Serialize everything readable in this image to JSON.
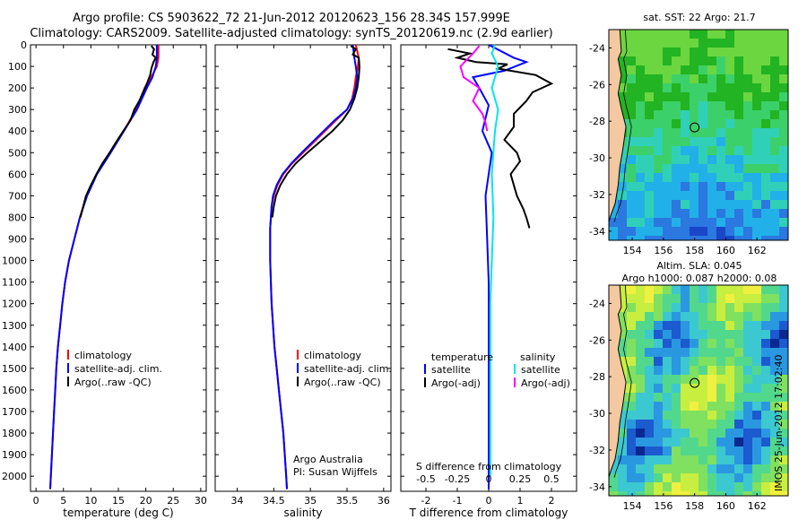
{
  "header": {
    "title_line1": "Argo profile: CS 5903622_72 21-Jun-2012 20120623_156 28.34S 157.999E",
    "title_line2": "Climatology: CARS2009. Satellite-adjusted climatology: synTS_20120619.nc (2.9d earlier)"
  },
  "depth_axis": {
    "ylim": [
      0,
      2070
    ],
    "ticks": [
      0,
      100,
      200,
      300,
      400,
      500,
      600,
      700,
      800,
      900,
      1000,
      1100,
      1200,
      1300,
      1400,
      1500,
      1600,
      1700,
      1800,
      1900,
      2000
    ]
  },
  "colors": {
    "climatology": "#ff0000",
    "satellite": "#0000ff",
    "argo": "#000000",
    "cyan": "#00e5ee",
    "magenta": "#ff00ff"
  },
  "chart_data": [
    {
      "type": "line",
      "name": "temperature",
      "xlabel": "temperature (deg C)",
      "xlim": [
        -1,
        31
      ],
      "xticks": [
        0,
        5,
        10,
        15,
        20,
        25,
        30
      ],
      "legend": [
        "climatology",
        "satellite-adj. clim.",
        "Argo(..raw -QC)"
      ],
      "series": [
        {
          "name": "climatology",
          "color": "#ff0000",
          "points": [
            [
              22.3,
              0
            ],
            [
              22.3,
              60
            ],
            [
              22.0,
              100
            ],
            [
              21.0,
              150
            ],
            [
              19.8,
              200
            ],
            [
              18.2,
              300
            ],
            [
              16.0,
              400
            ],
            [
              13.5,
              500
            ],
            [
              11.0,
              600
            ],
            [
              9.2,
              700
            ],
            [
              8.0,
              800
            ],
            [
              7.0,
              900
            ],
            [
              6.0,
              1000
            ],
            [
              5.3,
              1100
            ],
            [
              4.8,
              1200
            ],
            [
              4.4,
              1300
            ],
            [
              4.0,
              1400
            ],
            [
              3.7,
              1500
            ],
            [
              3.5,
              1600
            ],
            [
              3.3,
              1700
            ],
            [
              3.1,
              1800
            ],
            [
              2.9,
              1900
            ],
            [
              2.7,
              2000
            ],
            [
              2.6,
              2060
            ]
          ]
        },
        {
          "name": "satellite-adj. clim.",
          "color": "#0000ff",
          "points": [
            [
              22.0,
              0
            ],
            [
              22.0,
              60
            ],
            [
              21.8,
              100
            ],
            [
              21.2,
              150
            ],
            [
              20.2,
              200
            ],
            [
              18.4,
              300
            ],
            [
              16.0,
              400
            ],
            [
              13.6,
              500
            ],
            [
              11.1,
              600
            ],
            [
              9.3,
              700
            ],
            [
              8.0,
              800
            ],
            [
              7.0,
              900
            ],
            [
              6.0,
              1000
            ],
            [
              5.3,
              1100
            ],
            [
              4.8,
              1200
            ],
            [
              4.4,
              1300
            ],
            [
              4.0,
              1400
            ],
            [
              3.7,
              1500
            ],
            [
              3.5,
              1600
            ],
            [
              3.3,
              1700
            ],
            [
              3.1,
              1800
            ],
            [
              2.9,
              1900
            ],
            [
              2.7,
              2000
            ],
            [
              2.6,
              2060
            ]
          ]
        },
        {
          "name": "Argo(..raw -QC)",
          "color": "#000000",
          "points": [
            [
              21.0,
              5
            ],
            [
              21.5,
              20
            ],
            [
              21.2,
              45
            ],
            [
              21.8,
              60
            ],
            [
              21.4,
              80
            ],
            [
              21.0,
              110
            ],
            [
              20.8,
              140
            ],
            [
              20.2,
              180
            ],
            [
              19.5,
              220
            ],
            [
              18.8,
              260
            ],
            [
              17.9,
              300
            ],
            [
              17.2,
              350
            ],
            [
              15.9,
              400
            ],
            [
              14.6,
              450
            ],
            [
              13.4,
              500
            ],
            [
              12.1,
              550
            ],
            [
              11.0,
              600
            ],
            [
              10.0,
              650
            ],
            [
              9.1,
              700
            ],
            [
              8.6,
              750
            ],
            [
              8.1,
              800
            ]
          ]
        }
      ]
    },
    {
      "type": "line",
      "name": "salinity",
      "xlabel": "salinity",
      "xlim": [
        33.7,
        36.1
      ],
      "xticks": [
        34,
        34.5,
        35,
        35.5,
        36
      ],
      "legend": [
        "climatology",
        "satellite-adj. clim.",
        "Argo(..raw -QC)"
      ],
      "annotation": [
        "Argo Australia",
        "PI: Susan Wijffels"
      ],
      "series": [
        {
          "name": "climatology",
          "color": "#ff0000",
          "points": [
            [
              35.62,
              0
            ],
            [
              35.66,
              60
            ],
            [
              35.65,
              100
            ],
            [
              35.62,
              150
            ],
            [
              35.6,
              200
            ],
            [
              35.57,
              250
            ],
            [
              35.5,
              300
            ],
            [
              35.35,
              350
            ],
            [
              35.2,
              400
            ],
            [
              35.05,
              450
            ],
            [
              34.9,
              500
            ],
            [
              34.75,
              550
            ],
            [
              34.63,
              600
            ],
            [
              34.55,
              650
            ],
            [
              34.5,
              700
            ],
            [
              34.47,
              750
            ],
            [
              34.46,
              800
            ],
            [
              34.45,
              850
            ],
            [
              34.45,
              900
            ],
            [
              34.45,
              1000
            ],
            [
              34.46,
              1100
            ],
            [
              34.47,
              1200
            ],
            [
              34.49,
              1300
            ],
            [
              34.51,
              1400
            ],
            [
              34.54,
              1500
            ],
            [
              34.57,
              1600
            ],
            [
              34.6,
              1700
            ],
            [
              34.63,
              1800
            ],
            [
              34.65,
              1900
            ],
            [
              34.67,
              2000
            ],
            [
              34.68,
              2060
            ]
          ]
        },
        {
          "name": "satellite-adj. clim.",
          "color": "#0000ff",
          "points": [
            [
              35.58,
              0
            ],
            [
              35.6,
              60
            ],
            [
              35.62,
              100
            ],
            [
              35.64,
              150
            ],
            [
              35.62,
              200
            ],
            [
              35.58,
              250
            ],
            [
              35.5,
              300
            ],
            [
              35.33,
              350
            ],
            [
              35.18,
              400
            ],
            [
              35.03,
              450
            ],
            [
              34.88,
              500
            ],
            [
              34.74,
              550
            ],
            [
              34.62,
              600
            ],
            [
              34.54,
              650
            ],
            [
              34.49,
              700
            ],
            [
              34.47,
              750
            ],
            [
              34.46,
              800
            ],
            [
              34.45,
              850
            ],
            [
              34.45,
              900
            ],
            [
              34.45,
              1000
            ],
            [
              34.46,
              1100
            ],
            [
              34.47,
              1200
            ],
            [
              34.49,
              1300
            ],
            [
              34.51,
              1400
            ],
            [
              34.54,
              1500
            ],
            [
              34.57,
              1600
            ],
            [
              34.6,
              1700
            ],
            [
              34.63,
              1800
            ],
            [
              34.65,
              1900
            ],
            [
              34.67,
              2000
            ],
            [
              34.68,
              2060
            ]
          ]
        },
        {
          "name": "Argo(..raw -QC)",
          "color": "#000000",
          "points": [
            [
              35.55,
              5
            ],
            [
              35.62,
              20
            ],
            [
              35.58,
              45
            ],
            [
              35.66,
              60
            ],
            [
              35.67,
              100
            ],
            [
              35.66,
              150
            ],
            [
              35.64,
              200
            ],
            [
              35.6,
              250
            ],
            [
              35.54,
              300
            ],
            [
              35.44,
              350
            ],
            [
              35.3,
              400
            ],
            [
              35.13,
              450
            ],
            [
              34.96,
              500
            ],
            [
              34.8,
              550
            ],
            [
              34.68,
              600
            ],
            [
              34.59,
              650
            ],
            [
              34.53,
              700
            ],
            [
              34.5,
              750
            ],
            [
              34.48,
              800
            ]
          ]
        }
      ]
    },
    {
      "type": "line",
      "name": "difference",
      "xlabel": "T difference from climatology",
      "xlabel_top": "S difference from climatology",
      "xlim": [
        -2.8,
        2.8
      ],
      "xticks": [
        -2,
        -1,
        0,
        1,
        2
      ],
      "top_ticks": [
        "-0.5",
        "-0.25",
        "0",
        "0.25",
        "0.5"
      ],
      "top_tick_positions": [
        -2,
        -1,
        0,
        1,
        2
      ],
      "legend_left": {
        "title": "temperature",
        "items": [
          "satellite",
          "Argo(-adj)"
        ]
      },
      "legend_right": {
        "title": "salinity",
        "items": [
          "satellite",
          "Argo(-adj)"
        ]
      },
      "series": [
        {
          "name": "T satellite",
          "color": "#0000ff",
          "points": [
            [
              0,
              0
            ],
            [
              0.4,
              30
            ],
            [
              0.8,
              60
            ],
            [
              1.2,
              80
            ],
            [
              0.5,
              120
            ],
            [
              -0.5,
              150
            ],
            [
              -0.3,
              200
            ],
            [
              0.0,
              280
            ],
            [
              -0.2,
              400
            ],
            [
              0.1,
              500
            ],
            [
              -0.1,
              700
            ],
            [
              -0.05,
              900
            ],
            [
              0,
              1100
            ],
            [
              0,
              1300
            ],
            [
              0,
              1600
            ],
            [
              0,
              2060
            ]
          ]
        },
        {
          "name": "T Argo(-adj)",
          "color": "#000000",
          "points": [
            [
              -1.3,
              20
            ],
            [
              -0.6,
              40
            ],
            [
              -1.0,
              60
            ],
            [
              -0.4,
              80
            ],
            [
              0.6,
              90
            ],
            [
              0.3,
              110
            ],
            [
              1.5,
              140
            ],
            [
              2.0,
              180
            ],
            [
              1.4,
              220
            ],
            [
              1.2,
              260
            ],
            [
              0.8,
              320
            ],
            [
              0.8,
              380
            ],
            [
              0.5,
              440
            ],
            [
              0.9,
              500
            ],
            [
              1.0,
              540
            ],
            [
              0.7,
              600
            ],
            [
              0.9,
              700
            ],
            [
              1.1,
              760
            ],
            [
              1.2,
              800
            ],
            [
              1.3,
              850
            ]
          ]
        },
        {
          "name": "S satellite",
          "color": "#00e5ee",
          "points": [
            [
              0.2,
              0
            ],
            [
              0.1,
              40
            ],
            [
              0.3,
              100
            ],
            [
              0.1,
              200
            ],
            [
              0.3,
              300
            ],
            [
              0.2,
              400
            ],
            [
              0.1,
              600
            ],
            [
              0.15,
              800
            ],
            [
              0.1,
              1000
            ],
            [
              0.05,
              1200
            ],
            [
              0.05,
              1500
            ],
            [
              0.05,
              2000
            ]
          ]
        },
        {
          "name": "S Argo(-adj)",
          "color": "#ff00ff",
          "points": [
            [
              -0.3,
              5
            ],
            [
              -0.5,
              40
            ],
            [
              -0.9,
              100
            ],
            [
              -0.8,
              150
            ],
            [
              -0.3,
              200
            ],
            [
              -0.5,
              260
            ],
            [
              -0.2,
              320
            ],
            [
              -0.1,
              360
            ],
            [
              -0.05,
              400
            ]
          ]
        }
      ]
    },
    {
      "type": "heatmap",
      "name": "sst_map",
      "title": "sat. SST: 22 Argo: 21.7",
      "xticks": [
        154,
        156,
        158,
        160,
        162
      ],
      "yticks": [
        -24,
        -26,
        -28,
        -30,
        -32,
        -34
      ],
      "xlim": [
        152.5,
        164
      ],
      "ylim": [
        -34.5,
        -23
      ],
      "marker": [
        158.0,
        -28.34
      ]
    },
    {
      "type": "heatmap",
      "name": "sla_map",
      "title_line1": "Altim. SLA: 0.045",
      "title_line2": "Argo h1000: 0.087 h2000: 0.08",
      "xticks": [
        154,
        156,
        158,
        160,
        162
      ],
      "yticks": [
        -24,
        -26,
        -28,
        -30,
        -32,
        -34
      ],
      "xlim": [
        152.5,
        164
      ],
      "ylim": [
        -34.5,
        -23
      ],
      "marker": [
        158.0,
        -28.34
      ]
    }
  ],
  "stamp": "IMOS 25-Jun-2012 17:02:40"
}
